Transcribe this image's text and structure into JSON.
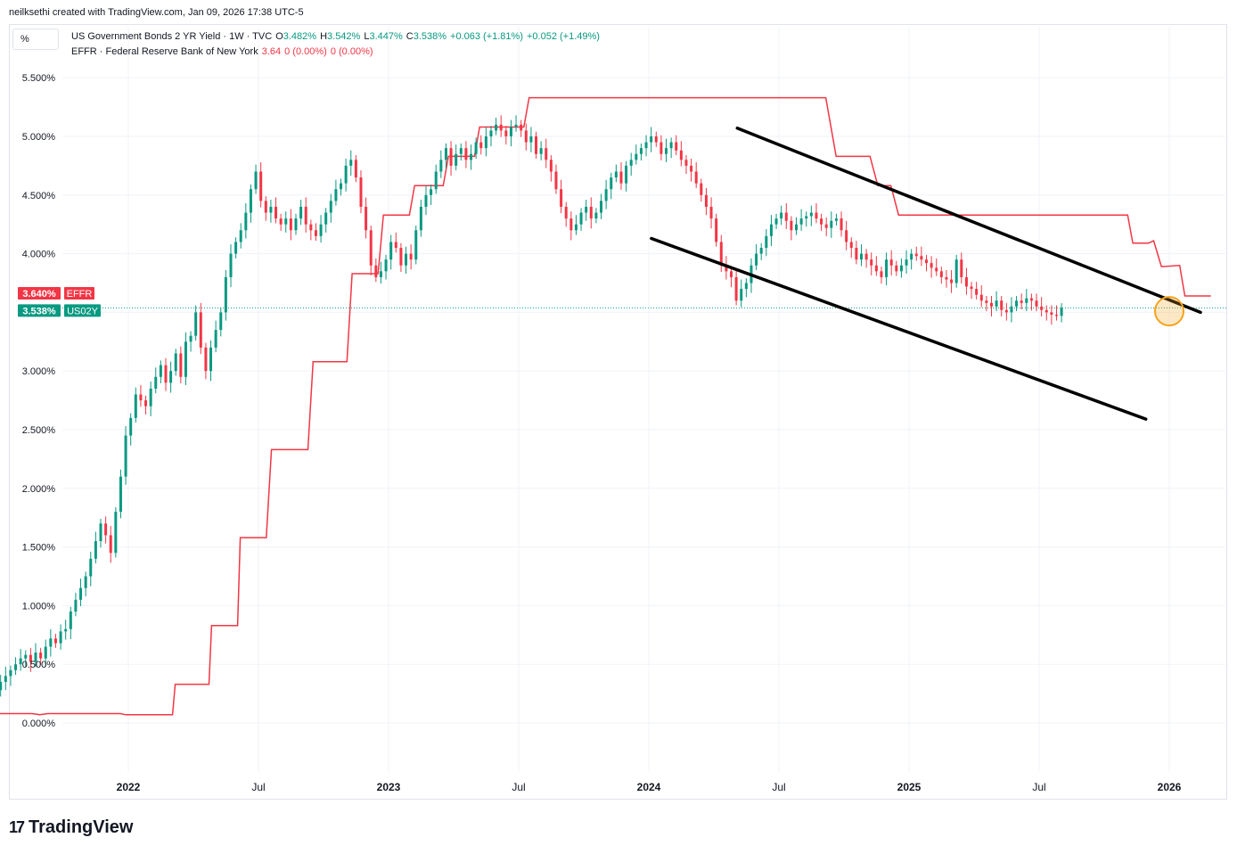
{
  "header": {
    "byline": "neilksethi created with TradingView.com, Jan 09, 2026 17:38 UTC-5",
    "unit": "%"
  },
  "legend": {
    "us02y": {
      "name": "US Government Bonds 2 YR Yield · 1W · TVC",
      "o_label": "O",
      "o": "3.482%",
      "h_label": "H",
      "h": "3.542%",
      "l_label": "L",
      "l": "3.447%",
      "c_label": "C",
      "c": "3.538%",
      "chg": "+0.063 (+1.81%)",
      "chg2": "+0.052 (+1.49%)"
    },
    "effr": {
      "name": "EFFR · Federal Reserve Bank of New York",
      "v1": "3.64",
      "v2": "0 (0.00%)",
      "v3": "0 (0.00%)"
    }
  },
  "logo": {
    "mark": "17",
    "text": "TradingView"
  },
  "colors": {
    "up": "#089981",
    "down": "#f23645",
    "effr": "#f23645",
    "trend": "#000000",
    "highlight": "#f7a21b",
    "grid": "#f0f3fa"
  },
  "chart_data": {
    "type": "line",
    "title": "US Government Bonds 2 YR Yield · 1W · TVC",
    "ylim": [
      -0.5,
      5.8
    ],
    "xlim": [
      2021.47,
      2026.27
    ],
    "y_ticks": [
      "5.500%",
      "5.000%",
      "4.500%",
      "4.000%",
      "3.500%",
      "3.000%",
      "2.500%",
      "2.000%",
      "1.500%",
      "1.000%",
      "0.500%",
      "0.000%"
    ],
    "y_tick_values": [
      5.5,
      5.0,
      4.5,
      4.0,
      3.5,
      3.0,
      2.5,
      2.0,
      1.5,
      1.0,
      0.5,
      0.0
    ],
    "x_ticks": [
      "2022",
      "Jul",
      "2023",
      "Jul",
      "2024",
      "Jul",
      "2025",
      "Jul",
      "2026"
    ],
    "x_tick_values": [
      2022.0,
      2022.5,
      2023.0,
      2023.5,
      2024.0,
      2024.5,
      2025.0,
      2025.5,
      2026.0
    ],
    "price_labels": [
      {
        "value": 3.64,
        "text": "3.640%",
        "tag": "EFFR",
        "color": "#f23645"
      },
      {
        "value": 3.538,
        "text": "3.538%",
        "tag": "US02Y",
        "color": "#089981"
      }
    ],
    "series": [
      {
        "name": "US02Y (weekly close, approx.)",
        "kind": "candlestick",
        "start": 2021.49,
        "step": 0.01923,
        "values": [
          0.28,
          0.35,
          0.4,
          0.45,
          0.5,
          0.55,
          0.58,
          0.52,
          0.6,
          0.55,
          0.65,
          0.72,
          0.68,
          0.78,
          0.8,
          0.95,
          1.05,
          1.15,
          1.25,
          1.4,
          1.55,
          1.7,
          1.6,
          1.45,
          1.8,
          2.1,
          2.45,
          2.6,
          2.8,
          2.75,
          2.7,
          2.85,
          2.95,
          3.05,
          2.9,
          3.0,
          3.15,
          2.95,
          3.25,
          3.3,
          3.5,
          3.2,
          3.0,
          3.2,
          3.35,
          3.5,
          3.8,
          4.0,
          4.1,
          4.2,
          4.35,
          4.55,
          4.7,
          4.45,
          4.35,
          4.4,
          4.3,
          4.25,
          4.3,
          4.2,
          4.3,
          4.4,
          4.25,
          4.2,
          4.15,
          4.25,
          4.35,
          4.45,
          4.55,
          4.6,
          4.75,
          4.8,
          4.65,
          4.4,
          4.2,
          3.9,
          3.8,
          3.85,
          3.95,
          4.1,
          4.05,
          3.9,
          4.0,
          3.95,
          4.2,
          4.4,
          4.5,
          4.55,
          4.7,
          4.8,
          4.9,
          4.75,
          4.85,
          4.9,
          4.8,
          4.85,
          4.95,
          4.9,
          5.0,
          5.05,
          5.1,
          5.05,
          5.0,
          5.08,
          5.1,
          5.05,
          4.95,
          5.0,
          4.85,
          4.9,
          4.8,
          4.7,
          4.55,
          4.4,
          4.3,
          4.2,
          4.25,
          4.35,
          4.4,
          4.3,
          4.35,
          4.45,
          4.55,
          4.65,
          4.7,
          4.6,
          4.75,
          4.8,
          4.85,
          4.9,
          4.95,
          5.0,
          4.95,
          4.85,
          4.9,
          4.95,
          4.88,
          4.8,
          4.75,
          4.7,
          4.6,
          4.5,
          4.4,
          4.3,
          4.1,
          3.9,
          3.85,
          3.8,
          3.6,
          3.7,
          3.75,
          3.9,
          4.0,
          4.05,
          4.15,
          4.25,
          4.3,
          4.35,
          4.28,
          4.2,
          4.25,
          4.3,
          4.32,
          4.35,
          4.3,
          4.25,
          4.22,
          4.28,
          4.3,
          4.2,
          4.1,
          4.05,
          3.95,
          4.0,
          3.95,
          3.9,
          3.85,
          3.8,
          3.95,
          3.9,
          3.85,
          3.9,
          3.95,
          4.0,
          3.98,
          3.95,
          3.92,
          3.88,
          3.85,
          3.8,
          3.78,
          3.75,
          3.95,
          3.8,
          3.72,
          3.7,
          3.65,
          3.6,
          3.58,
          3.55,
          3.6,
          3.52,
          3.5,
          3.55,
          3.6,
          3.58,
          3.62,
          3.6,
          3.55,
          3.52,
          3.5,
          3.48,
          3.47,
          3.538
        ]
      },
      {
        "name": "EFFR",
        "kind": "line",
        "points": [
          [
            2021.47,
            0.08
          ],
          [
            2021.63,
            0.08
          ],
          [
            2021.66,
            0.07
          ],
          [
            2021.69,
            0.08
          ],
          [
            2021.97,
            0.08
          ],
          [
            2021.99,
            0.07
          ],
          [
            2022.17,
            0.07
          ],
          [
            2022.18,
            0.33
          ],
          [
            2022.31,
            0.33
          ],
          [
            2022.32,
            0.83
          ],
          [
            2022.42,
            0.83
          ],
          [
            2022.43,
            1.58
          ],
          [
            2022.53,
            1.58
          ],
          [
            2022.55,
            2.33
          ],
          [
            2022.69,
            2.33
          ],
          [
            2022.71,
            3.08
          ],
          [
            2022.84,
            3.08
          ],
          [
            2022.86,
            3.83
          ],
          [
            2022.96,
            3.83
          ],
          [
            2022.98,
            4.33
          ],
          [
            2023.08,
            4.33
          ],
          [
            2023.1,
            4.58
          ],
          [
            2023.21,
            4.58
          ],
          [
            2023.23,
            4.83
          ],
          [
            2023.33,
            4.83
          ],
          [
            2023.35,
            5.08
          ],
          [
            2023.52,
            5.08
          ],
          [
            2023.54,
            5.33
          ],
          [
            2024.68,
            5.33
          ],
          [
            2024.72,
            4.83
          ],
          [
            2024.85,
            4.83
          ],
          [
            2024.88,
            4.58
          ],
          [
            2024.93,
            4.58
          ],
          [
            2024.96,
            4.33
          ],
          [
            2025.84,
            4.33
          ],
          [
            2025.86,
            4.09
          ],
          [
            2025.92,
            4.09
          ],
          [
            2025.94,
            4.11
          ],
          [
            2025.97,
            3.89
          ],
          [
            2026.04,
            3.9
          ],
          [
            2026.06,
            3.64
          ],
          [
            2026.16,
            3.64
          ]
        ]
      }
    ],
    "annotations": [
      {
        "type": "trendline",
        "from": [
          2024.34,
          5.07
        ],
        "to": [
          2026.12,
          3.5
        ],
        "color": "#000000"
      },
      {
        "type": "trendline",
        "from": [
          2024.01,
          4.13
        ],
        "to": [
          2025.91,
          2.59
        ],
        "color": "#000000"
      },
      {
        "type": "circle",
        "center": [
          2026.0,
          3.51
        ],
        "color": "#f7a21b"
      }
    ]
  }
}
